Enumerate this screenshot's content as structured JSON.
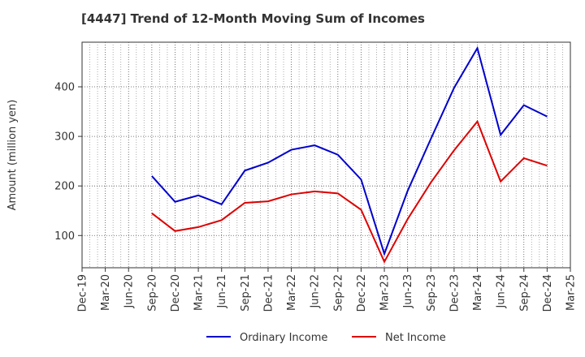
{
  "title": "[4447]  Trend of 12-Month Moving Sum of Incomes",
  "chart_data": {
    "type": "line",
    "title": "[4447]  Trend of 12-Month Moving Sum of Incomes",
    "xlabel": "",
    "ylabel": "Amount (million yen)",
    "ylim": [
      35,
      490
    ],
    "yticks": [
      100,
      200,
      300,
      400
    ],
    "grid": true,
    "legend_position": "bottom",
    "categories": [
      "Dec-19",
      "Mar-20",
      "Jun-20",
      "Sep-20",
      "Dec-20",
      "Mar-21",
      "Jun-21",
      "Sep-21",
      "Dec-21",
      "Mar-22",
      "Jun-22",
      "Sep-22",
      "Dec-22",
      "Mar-23",
      "Jun-23",
      "Sep-23",
      "Dec-23",
      "Mar-24",
      "Jun-24",
      "Sep-24",
      "Dec-24",
      "Mar-25"
    ],
    "series": [
      {
        "name": "Ordinary Income",
        "color": "#0000cc",
        "values": [
          null,
          null,
          null,
          220,
          168,
          181,
          163,
          231,
          247,
          273,
          282,
          263,
          213,
          63,
          190,
          295,
          398,
          478,
          303,
          363,
          340,
          null
        ]
      },
      {
        "name": "Net Income",
        "color": "#dd0000",
        "values": [
          null,
          null,
          null,
          145,
          109,
          117,
          131,
          166,
          169,
          183,
          189,
          185,
          152,
          47,
          133,
          207,
          272,
          330,
          209,
          256,
          241,
          null
        ]
      }
    ]
  }
}
